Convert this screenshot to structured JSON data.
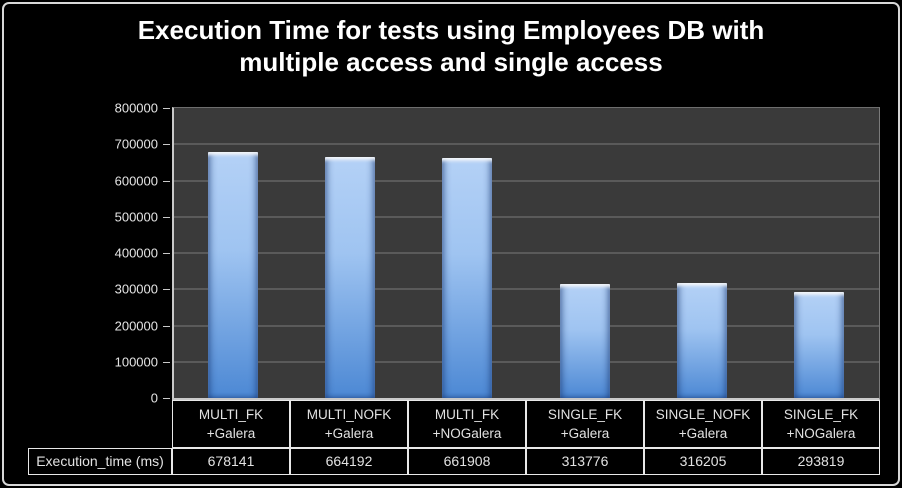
{
  "title": {
    "line1": "Execution Time for tests using Employees DB with",
    "line2": "multiple access and single access"
  },
  "chart_data": {
    "type": "bar",
    "title": "Execution Time for tests using Employees DB with multiple access and single access",
    "categories": [
      "MULTI_FK\n+Galera",
      "MULTI_NOFK\n+Galera",
      "MULTI_FK\n+NOGalera",
      "SINGLE_FK\n+Galera",
      "SINGLE_NOFK\n+Galera",
      "SINGLE_FK\n+NOGalera"
    ],
    "series": [
      {
        "name": "Execution_time (ms)",
        "values": [
          678141,
          664192,
          661908,
          313776,
          316205,
          293819
        ]
      }
    ],
    "xlabel": "",
    "ylabel": "",
    "ylim": [
      0,
      800000
    ],
    "ytick_step": 100000,
    "ytick_labels": [
      "0",
      "100000",
      "200000",
      "300000",
      "400000",
      "500000",
      "600000",
      "700000",
      "800000"
    ],
    "grid": true,
    "legend_position": "none",
    "data_table_shown": true,
    "colors": {
      "bar_top": "#b4d1f6",
      "bar_bottom": "#4c88d4",
      "plot_background": "#3a3a3a",
      "gridline": "#5a5a5a",
      "page_background": "#000000",
      "text": "#ffffff",
      "table_border": "#e8e8e8"
    }
  },
  "table": {
    "row_label": "Execution_time (ms)"
  }
}
